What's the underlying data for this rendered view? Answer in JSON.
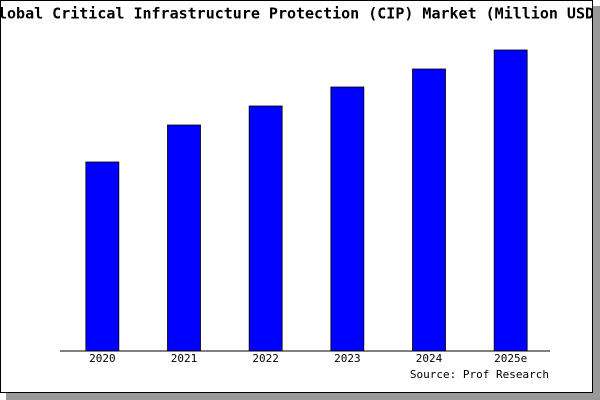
{
  "chart_data": {
    "type": "bar",
    "title": "Global Critical Infrastructure Protection (CIP) Market (Million USD)",
    "categories": [
      "2020",
      "2021",
      "2022",
      "2023",
      "2024",
      "2025e"
    ],
    "values": [
      189,
      226,
      245,
      264,
      282,
      301
    ],
    "color": "#0000ff",
    "source": "Source: Prof Research"
  }
}
